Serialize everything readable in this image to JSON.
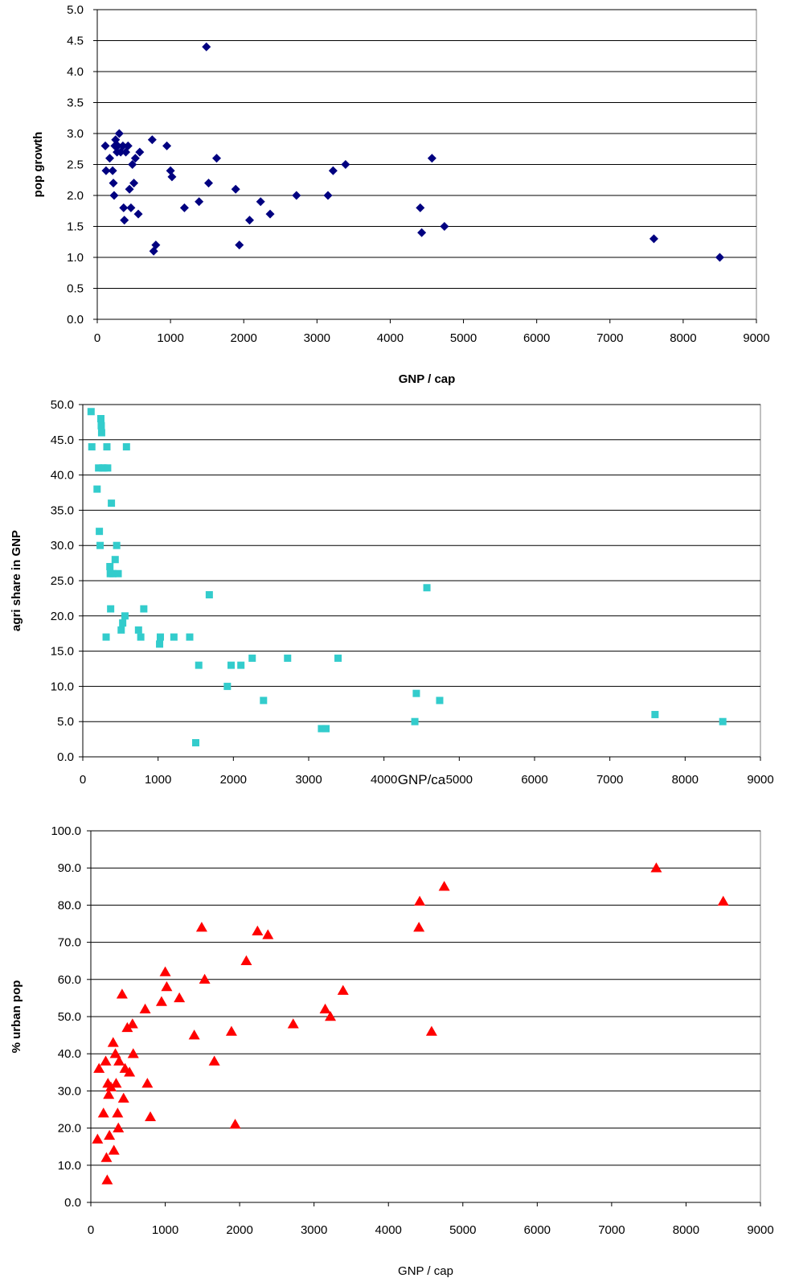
{
  "chart_data": [
    {
      "type": "scatter",
      "title": "",
      "xlabel": "GNP / cap",
      "ylabel": "pop growth",
      "xlim": [
        0,
        9000
      ],
      "ylim": [
        0.0,
        5.0
      ],
      "x_ticks": [
        "0",
        "1000",
        "2000",
        "3000",
        "4000",
        "5000",
        "6000",
        "7000",
        "8000",
        "9000"
      ],
      "y_ticks": [
        "0.0",
        "0.5",
        "1.0",
        "1.5",
        "2.0",
        "2.5",
        "3.0",
        "3.5",
        "4.0",
        "4.5",
        "5.0"
      ],
      "grid": "horizontal",
      "marker": "diamond",
      "color": "#000080",
      "points": [
        [
          110,
          2.8
        ],
        [
          120,
          2.4
        ],
        [
          170,
          2.6
        ],
        [
          210,
          2.4
        ],
        [
          220,
          2.2
        ],
        [
          230,
          2.0
        ],
        [
          240,
          2.8
        ],
        [
          250,
          2.9
        ],
        [
          270,
          2.7
        ],
        [
          280,
          2.8
        ],
        [
          300,
          3.0
        ],
        [
          320,
          2.7
        ],
        [
          350,
          2.8
        ],
        [
          360,
          1.8
        ],
        [
          370,
          1.6
        ],
        [
          390,
          2.7
        ],
        [
          420,
          2.8
        ],
        [
          440,
          2.1
        ],
        [
          460,
          1.8
        ],
        [
          480,
          2.5
        ],
        [
          500,
          2.2
        ],
        [
          520,
          2.6
        ],
        [
          560,
          1.7
        ],
        [
          580,
          2.7
        ],
        [
          750,
          2.9
        ],
        [
          770,
          1.1
        ],
        [
          800,
          1.2
        ],
        [
          950,
          2.8
        ],
        [
          1000,
          2.4
        ],
        [
          1020,
          2.3
        ],
        [
          1190,
          1.8
        ],
        [
          1390,
          1.9
        ],
        [
          1490,
          4.4
        ],
        [
          1520,
          2.2
        ],
        [
          1630,
          2.6
        ],
        [
          1890,
          2.1
        ],
        [
          1940,
          1.2
        ],
        [
          2080,
          1.6
        ],
        [
          2230,
          1.9
        ],
        [
          2360,
          1.7
        ],
        [
          2720,
          2.0
        ],
        [
          3150,
          2.0
        ],
        [
          3220,
          2.4
        ],
        [
          3390,
          2.5
        ],
        [
          4410,
          1.8
        ],
        [
          4430,
          1.4
        ],
        [
          4570,
          2.6
        ],
        [
          4740,
          1.5
        ],
        [
          7600,
          1.3
        ],
        [
          8500,
          1.0
        ]
      ]
    },
    {
      "type": "scatter",
      "title": "",
      "xlabel": "GNP/ca",
      "ylabel": "agri share in GNP",
      "xlim": [
        0,
        9000
      ],
      "ylim": [
        0.0,
        50.0
      ],
      "x_ticks": [
        "0",
        "1000",
        "2000",
        "3000",
        "4000",
        "5000",
        "6000",
        "7000",
        "8000",
        "9000"
      ],
      "y_ticks": [
        "0.0",
        "5.0",
        "10.0",
        "15.0",
        "20.0",
        "25.0",
        "30.0",
        "35.0",
        "40.0",
        "45.0",
        "50.0"
      ],
      "grid": "horizontal",
      "marker": "square",
      "color": "#33CCCC",
      "points": [
        [
          110,
          49.0
        ],
        [
          120,
          44.0
        ],
        [
          190,
          38.0
        ],
        [
          210,
          41.0
        ],
        [
          220,
          32.0
        ],
        [
          230,
          30.0
        ],
        [
          240,
          48.0
        ],
        [
          245,
          47.0
        ],
        [
          250,
          46.0
        ],
        [
          260,
          41.0
        ],
        [
          280,
          41.0
        ],
        [
          310,
          17.0
        ],
        [
          320,
          44.0
        ],
        [
          330,
          41.0
        ],
        [
          360,
          27.0
        ],
        [
          365,
          26.0
        ],
        [
          370,
          21.0
        ],
        [
          380,
          36.0
        ],
        [
          400,
          26.0
        ],
        [
          430,
          28.0
        ],
        [
          450,
          30.0
        ],
        [
          470,
          26.0
        ],
        [
          510,
          18.0
        ],
        [
          530,
          19.0
        ],
        [
          560,
          20.0
        ],
        [
          580,
          44.0
        ],
        [
          740,
          18.0
        ],
        [
          770,
          17.0
        ],
        [
          810,
          21.0
        ],
        [
          1020,
          16.0
        ],
        [
          1030,
          17.0
        ],
        [
          1210,
          17.0
        ],
        [
          1420,
          17.0
        ],
        [
          1500,
          2.0
        ],
        [
          1540,
          13.0
        ],
        [
          1680,
          23.0
        ],
        [
          1920,
          10.0
        ],
        [
          1970,
          13.0
        ],
        [
          2100,
          13.0
        ],
        [
          2250,
          14.0
        ],
        [
          2400,
          8.0
        ],
        [
          2720,
          14.0
        ],
        [
          3170,
          4.0
        ],
        [
          3230,
          4.0
        ],
        [
          3390,
          14.0
        ],
        [
          4410,
          5.0
        ],
        [
          4430,
          9.0
        ],
        [
          4570,
          24.0
        ],
        [
          4740,
          8.0
        ],
        [
          7600,
          6.0
        ],
        [
          8500,
          5.0
        ]
      ]
    },
    {
      "type": "scatter",
      "title": "",
      "xlabel": "GNP / cap",
      "ylabel": "% urban pop",
      "xlim": [
        0,
        9000
      ],
      "ylim": [
        0.0,
        100.0
      ],
      "x_ticks": [
        "0",
        "1000",
        "2000",
        "3000",
        "4000",
        "5000",
        "6000",
        "7000",
        "8000",
        "9000"
      ],
      "y_ticks": [
        "0.0",
        "10.0",
        "20.0",
        "30.0",
        "40.0",
        "50.0",
        "60.0",
        "70.0",
        "80.0",
        "90.0",
        "100.0"
      ],
      "grid": "horizontal",
      "marker": "triangle",
      "color": "#FF0000",
      "points": [
        [
          90,
          17.0
        ],
        [
          110,
          36.0
        ],
        [
          170,
          24.0
        ],
        [
          200,
          38.0
        ],
        [
          210,
          12.0
        ],
        [
          220,
          6.0
        ],
        [
          230,
          32.0
        ],
        [
          240,
          29.0
        ],
        [
          250,
          18.0
        ],
        [
          270,
          31.0
        ],
        [
          300,
          43.0
        ],
        [
          310,
          14.0
        ],
        [
          330,
          40.0
        ],
        [
          340,
          32.0
        ],
        [
          360,
          24.0
        ],
        [
          370,
          20.0
        ],
        [
          380,
          38.0
        ],
        [
          420,
          56.0
        ],
        [
          440,
          28.0
        ],
        [
          460,
          36.0
        ],
        [
          490,
          47.0
        ],
        [
          520,
          35.0
        ],
        [
          560,
          48.0
        ],
        [
          570,
          40.0
        ],
        [
          730,
          52.0
        ],
        [
          760,
          32.0
        ],
        [
          800,
          23.0
        ],
        [
          950,
          54.0
        ],
        [
          1000,
          62.0
        ],
        [
          1020,
          58.0
        ],
        [
          1190,
          55.0
        ],
        [
          1390,
          45.0
        ],
        [
          1490,
          74.0
        ],
        [
          1530,
          60.0
        ],
        [
          1660,
          38.0
        ],
        [
          1890,
          46.0
        ],
        [
          1940,
          21.0
        ],
        [
          2090,
          65.0
        ],
        [
          2240,
          73.0
        ],
        [
          2380,
          72.0
        ],
        [
          2720,
          48.0
        ],
        [
          3150,
          52.0
        ],
        [
          3220,
          50.0
        ],
        [
          3390,
          57.0
        ],
        [
          4410,
          74.0
        ],
        [
          4420,
          81.0
        ],
        [
          4580,
          46.0
        ],
        [
          4750,
          85.0
        ],
        [
          7600,
          90.0
        ],
        [
          8500,
          81.0
        ]
      ]
    }
  ]
}
